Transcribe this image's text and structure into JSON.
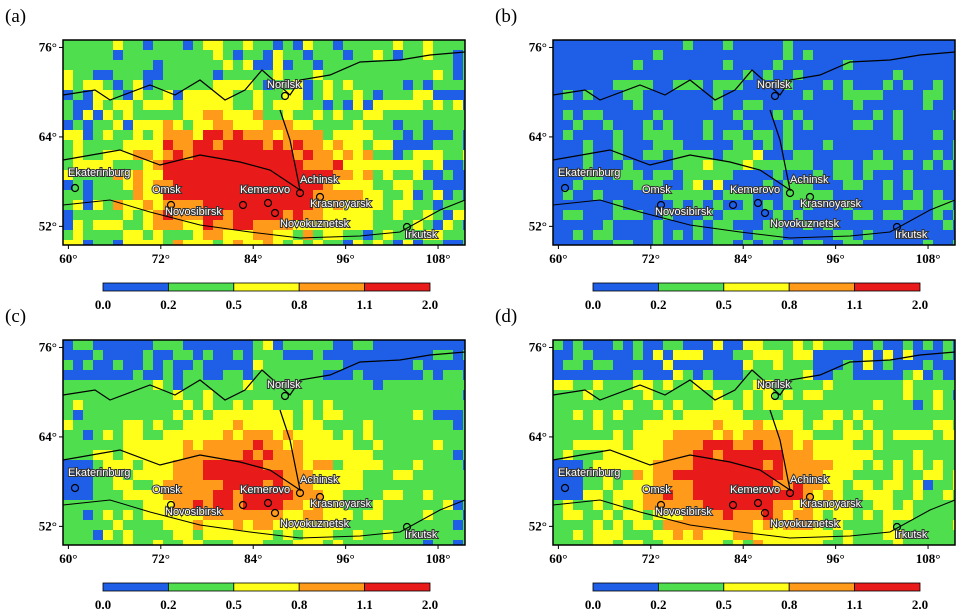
{
  "panels": [
    {
      "label": "(a)"
    },
    {
      "label": "(b)"
    },
    {
      "label": "(c)"
    },
    {
      "label": "(d)"
    }
  ],
  "lat_ticks": [
    {
      "value": 76,
      "label": "76°"
    },
    {
      "value": 64,
      "label": "64°"
    },
    {
      "value": 52,
      "label": "52°"
    }
  ],
  "lon_ticks": [
    {
      "value": 60,
      "label": "60°"
    },
    {
      "value": 72,
      "label": "72°"
    },
    {
      "value": 84,
      "label": "84°"
    },
    {
      "value": 96,
      "label": "96°"
    },
    {
      "value": 108,
      "label": "108°"
    }
  ],
  "lonlim": [
    59.3,
    111.5
  ],
  "latlim": [
    77,
    49.5
  ],
  "colorbar": {
    "ticks": [
      {
        "value": 0,
        "label": "0.0"
      },
      {
        "value": 0.2,
        "label": "0.2"
      },
      {
        "value": 0.5,
        "label": "0.5"
      },
      {
        "value": 0.8,
        "label": "0.8"
      },
      {
        "value": 1.1,
        "label": "1.1"
      },
      {
        "value": 2,
        "label": "2.0"
      }
    ],
    "colors": [
      "#1f5fe8",
      "#4ede4e",
      "#ffff1a",
      "#ff9a1a",
      "#e81a1a"
    ]
  },
  "cities": [
    "Ekaterinburg",
    "Omsk",
    "Novosibirsk",
    "Kemerovo",
    "Achinsk",
    "Krasnoyarsk",
    "Novokuznetsk",
    "Irkutsk",
    "Norilsk"
  ]
}
